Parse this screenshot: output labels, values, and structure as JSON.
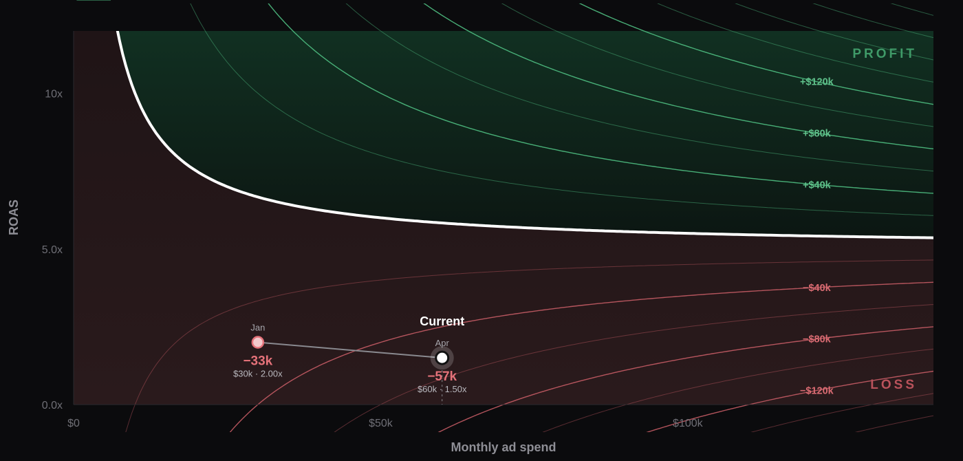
{
  "chart_data": {
    "type": "contour",
    "xlabel": "Monthly ad spend",
    "ylabel": "ROAS",
    "xlim": [
      0,
      140000
    ],
    "ylim": [
      0,
      12
    ],
    "x_ticks": [
      {
        "value": 0,
        "label": "$0"
      },
      {
        "value": 50000,
        "label": "$50k"
      },
      {
        "value": 100000,
        "label": "$100k"
      }
    ],
    "y_ticks": [
      {
        "value": 0,
        "label": "0.0x"
      },
      {
        "value": 5,
        "label": "5.0x"
      },
      {
        "value": 10,
        "label": "10x"
      }
    ],
    "regions": {
      "profit": "PROFIT",
      "loss": "LOSS"
    },
    "breakeven": {
      "margin": 0.2,
      "fixed_cost": 10000
    },
    "contours_positive": [
      20000,
      40000,
      60000,
      80000,
      100000,
      120000,
      140000,
      160000,
      180000,
      200000,
      220000
    ],
    "contours_negative": [
      -20000,
      -40000,
      -60000,
      -80000,
      -100000,
      -120000,
      -140000,
      -160000,
      -180000,
      -200000,
      -220000,
      -240000,
      -260000,
      -280000,
      -300000,
      -320000,
      -340000,
      -360000,
      -380000,
      -400000,
      -420000
    ],
    "contour_labels": [
      {
        "value": 120000,
        "label": "+$120k"
      },
      {
        "value": 80000,
        "label": "+$80k"
      },
      {
        "value": 40000,
        "label": "+$40k"
      },
      {
        "value": -40000,
        "label": "−$40k"
      },
      {
        "value": -80000,
        "label": "−$80k"
      },
      {
        "value": -120000,
        "label": "−$120k"
      }
    ],
    "points": [
      {
        "month": "Jan",
        "spend": 30000,
        "roas": 2.0,
        "profit_label": "−33k",
        "detail": "$30k · 2.00x",
        "current": false
      },
      {
        "month": "Apr",
        "spend": 60000,
        "roas": 1.5,
        "profit_label": "−57k",
        "detail": "$60k · 1.50x",
        "current": true
      }
    ],
    "current_label": "Current",
    "colors": {
      "profit_line": "#4fbf82",
      "loss_line": "#d0606a",
      "breakeven": "#ffffff",
      "profit_fill_top": "#123424",
      "loss_fill": "#261719"
    }
  }
}
